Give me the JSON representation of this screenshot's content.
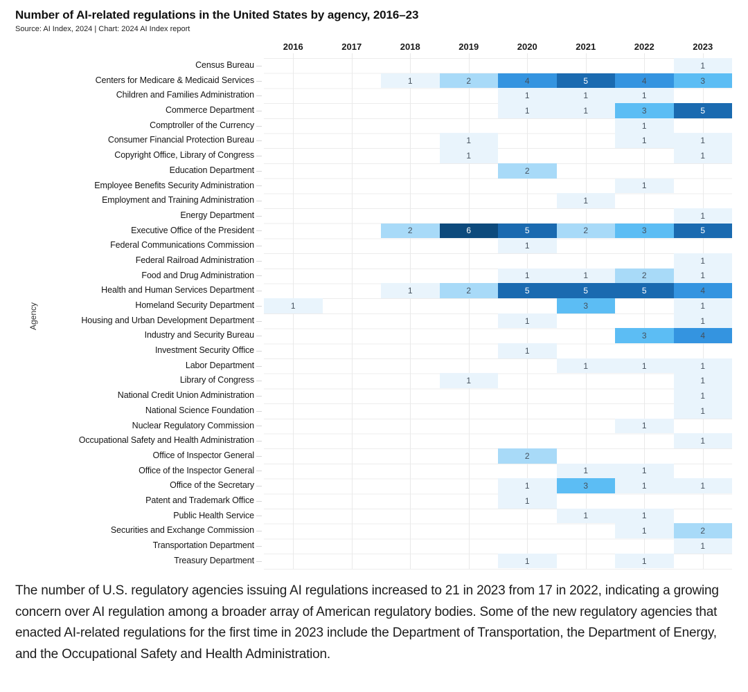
{
  "header": {
    "title": "Number of AI-related regulations in the United States by agency, 2016–23",
    "source": "Source: AI Index, 2024 | Chart: 2024 AI Index report"
  },
  "chart_data": {
    "type": "heatmap",
    "title": "Number of AI-related regulations in the United States by agency, 2016–23",
    "xlabel": "",
    "ylabel": "Agency",
    "years": [
      "2016",
      "2017",
      "2018",
      "2019",
      "2020",
      "2021",
      "2022",
      "2023"
    ],
    "color_scale": {
      "1": "#e9f4fc",
      "2": "#a8daf8",
      "3": "#5cbdf4",
      "4": "#3494e0",
      "5": "#1a6ab0",
      "6": "#0d4a7c"
    },
    "light_text_threshold": 5,
    "rows": [
      {
        "agency": "Census Bureau",
        "values": [
          null,
          null,
          null,
          null,
          null,
          null,
          null,
          1
        ]
      },
      {
        "agency": "Centers for Medicare & Medicaid Services",
        "values": [
          null,
          null,
          1,
          2,
          4,
          5,
          4,
          3
        ]
      },
      {
        "agency": "Children and Families Administration",
        "values": [
          null,
          null,
          null,
          null,
          1,
          1,
          1,
          null
        ]
      },
      {
        "agency": "Commerce Department",
        "values": [
          null,
          null,
          null,
          null,
          1,
          1,
          3,
          5
        ]
      },
      {
        "agency": "Comptroller of the Currency",
        "values": [
          null,
          null,
          null,
          null,
          null,
          null,
          1,
          null
        ]
      },
      {
        "agency": "Consumer Financial Protection Bureau",
        "values": [
          null,
          null,
          null,
          1,
          null,
          null,
          1,
          1
        ]
      },
      {
        "agency": "Copyright Office, Library of Congress",
        "values": [
          null,
          null,
          null,
          1,
          null,
          null,
          null,
          1
        ]
      },
      {
        "agency": "Education Department",
        "values": [
          null,
          null,
          null,
          null,
          2,
          null,
          null,
          null
        ]
      },
      {
        "agency": "Employee Benefits Security Administration",
        "values": [
          null,
          null,
          null,
          null,
          null,
          null,
          1,
          null
        ]
      },
      {
        "agency": "Employment and Training Administration",
        "values": [
          null,
          null,
          null,
          null,
          null,
          1,
          null,
          null
        ]
      },
      {
        "agency": "Energy Department",
        "values": [
          null,
          null,
          null,
          null,
          null,
          null,
          null,
          1
        ]
      },
      {
        "agency": "Executive Office of the President",
        "values": [
          null,
          null,
          2,
          6,
          5,
          2,
          3,
          5
        ]
      },
      {
        "agency": "Federal Communications Commission",
        "values": [
          null,
          null,
          null,
          null,
          1,
          null,
          null,
          null
        ]
      },
      {
        "agency": "Federal Railroad Administration",
        "values": [
          null,
          null,
          null,
          null,
          null,
          null,
          null,
          1
        ]
      },
      {
        "agency": "Food and Drug Administration",
        "values": [
          null,
          null,
          null,
          null,
          1,
          1,
          2,
          1
        ]
      },
      {
        "agency": "Health and Human Services Department",
        "values": [
          null,
          null,
          1,
          2,
          5,
          5,
          5,
          4
        ]
      },
      {
        "agency": "Homeland Security Department",
        "values": [
          1,
          null,
          null,
          null,
          null,
          3,
          null,
          1
        ]
      },
      {
        "agency": "Housing and Urban Development Department",
        "values": [
          null,
          null,
          null,
          null,
          1,
          null,
          null,
          1
        ]
      },
      {
        "agency": "Industry and Security Bureau",
        "values": [
          null,
          null,
          null,
          null,
          null,
          null,
          3,
          4
        ]
      },
      {
        "agency": "Investment Security Office",
        "values": [
          null,
          null,
          null,
          null,
          1,
          null,
          null,
          null
        ]
      },
      {
        "agency": "Labor Department",
        "values": [
          null,
          null,
          null,
          null,
          null,
          1,
          1,
          1
        ]
      },
      {
        "agency": "Library of Congress",
        "values": [
          null,
          null,
          null,
          1,
          null,
          null,
          null,
          1
        ]
      },
      {
        "agency": "National Credit Union Administration",
        "values": [
          null,
          null,
          null,
          null,
          null,
          null,
          null,
          1
        ]
      },
      {
        "agency": "National Science Foundation",
        "values": [
          null,
          null,
          null,
          null,
          null,
          null,
          null,
          1
        ]
      },
      {
        "agency": "Nuclear Regulatory Commission",
        "values": [
          null,
          null,
          null,
          null,
          null,
          null,
          1,
          null
        ]
      },
      {
        "agency": "Occupational Safety and Health Administration",
        "values": [
          null,
          null,
          null,
          null,
          null,
          null,
          null,
          1
        ]
      },
      {
        "agency": "Office of Inspector General",
        "values": [
          null,
          null,
          null,
          null,
          2,
          null,
          null,
          null
        ]
      },
      {
        "agency": "Office of the Inspector General",
        "values": [
          null,
          null,
          null,
          null,
          null,
          1,
          1,
          null
        ]
      },
      {
        "agency": "Office of the Secretary",
        "values": [
          null,
          null,
          null,
          null,
          1,
          3,
          1,
          1
        ]
      },
      {
        "agency": "Patent and Trademark Office",
        "values": [
          null,
          null,
          null,
          null,
          1,
          null,
          null,
          null
        ]
      },
      {
        "agency": "Public Health Service",
        "values": [
          null,
          null,
          null,
          null,
          null,
          1,
          1,
          null
        ]
      },
      {
        "agency": "Securities and Exchange Commission",
        "values": [
          null,
          null,
          null,
          null,
          null,
          null,
          1,
          2
        ]
      },
      {
        "agency": "Transportation Department",
        "values": [
          null,
          null,
          null,
          null,
          null,
          null,
          null,
          1
        ]
      },
      {
        "agency": "Treasury Department",
        "values": [
          null,
          null,
          null,
          null,
          1,
          null,
          1,
          null
        ]
      }
    ]
  },
  "caption": "The number of U.S. regulatory agencies issuing AI regulations increased to 21 in 2023 from 17 in 2022, indicating a growing concern over AI regulation among a broader array of American regulatory bodies. Some of the new regulatory agencies that enacted AI-related regulations for the first time in 2023 include the Department of Transportation, the Department of Energy, and the Occupational Safety and Health Administration."
}
